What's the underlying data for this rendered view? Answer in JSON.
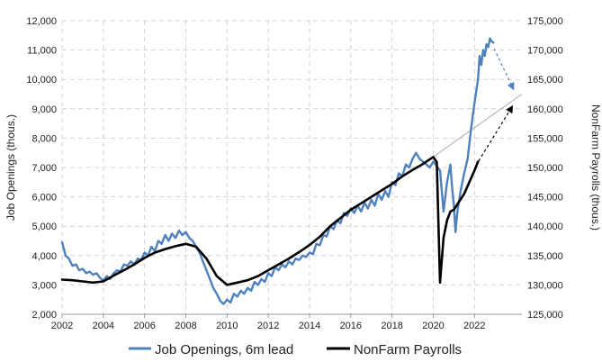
{
  "chart_data": {
    "type": "line",
    "xlim": [
      2002,
      2024.3
    ],
    "x_ticks": [
      "2002",
      "2004",
      "2006",
      "2008",
      "2010",
      "2012",
      "2014",
      "2016",
      "2018",
      "2020",
      "2022"
    ],
    "y_left": {
      "label": "Job Openings (thous.)",
      "lim": [
        2000,
        12000
      ],
      "ticks": [
        "2,000",
        "3,000",
        "4,000",
        "5,000",
        "6,000",
        "7,000",
        "8,000",
        "9,000",
        "10,000",
        "11,000",
        "12,000"
      ]
    },
    "y_right": {
      "label": "NonFarm Payrolls (thous.)",
      "lim": [
        125000,
        175000
      ],
      "ticks": [
        "125,000",
        "130,000",
        "135,000",
        "140,000",
        "145,000",
        "150,000",
        "155,000",
        "160,000",
        "165,000",
        "170,000",
        "175,000"
      ]
    },
    "grid": true,
    "legend_position": "bottom",
    "series": [
      {
        "name": "Job Openings, 6m lead",
        "axis": "left",
        "color": "#4f81bd",
        "points": [
          [
            2002.0,
            4450
          ],
          [
            2002.17,
            4000
          ],
          [
            2002.33,
            3900
          ],
          [
            2002.5,
            3650
          ],
          [
            2002.67,
            3700
          ],
          [
            2002.83,
            3500
          ],
          [
            2003.0,
            3550
          ],
          [
            2003.17,
            3400
          ],
          [
            2003.33,
            3450
          ],
          [
            2003.5,
            3350
          ],
          [
            2003.67,
            3400
          ],
          [
            2003.83,
            3250
          ],
          [
            2004.0,
            3150
          ],
          [
            2004.17,
            3300
          ],
          [
            2004.33,
            3200
          ],
          [
            2004.5,
            3400
          ],
          [
            2004.67,
            3500
          ],
          [
            2004.83,
            3450
          ],
          [
            2005.0,
            3700
          ],
          [
            2005.17,
            3650
          ],
          [
            2005.33,
            3800
          ],
          [
            2005.5,
            3700
          ],
          [
            2005.67,
            3900
          ],
          [
            2005.83,
            3850
          ],
          [
            2006.0,
            4100
          ],
          [
            2006.17,
            4000
          ],
          [
            2006.33,
            4300
          ],
          [
            2006.5,
            4150
          ],
          [
            2006.67,
            4500
          ],
          [
            2006.83,
            4400
          ],
          [
            2007.0,
            4700
          ],
          [
            2007.17,
            4500
          ],
          [
            2007.33,
            4750
          ],
          [
            2007.5,
            4600
          ],
          [
            2007.67,
            4850
          ],
          [
            2007.83,
            4700
          ],
          [
            2008.0,
            4800
          ],
          [
            2008.17,
            4600
          ],
          [
            2008.33,
            4500
          ],
          [
            2008.5,
            4300
          ],
          [
            2008.67,
            4100
          ],
          [
            2008.83,
            3800
          ],
          [
            2009.0,
            3500
          ],
          [
            2009.17,
            3200
          ],
          [
            2009.33,
            2900
          ],
          [
            2009.5,
            2700
          ],
          [
            2009.67,
            2450
          ],
          [
            2009.83,
            2350
          ],
          [
            2010.0,
            2500
          ],
          [
            2010.17,
            2400
          ],
          [
            2010.33,
            2700
          ],
          [
            2010.5,
            2600
          ],
          [
            2010.67,
            2800
          ],
          [
            2010.83,
            2700
          ],
          [
            2011.0,
            2900
          ],
          [
            2011.17,
            2800
          ],
          [
            2011.33,
            3100
          ],
          [
            2011.5,
            3000
          ],
          [
            2011.67,
            3200
          ],
          [
            2011.83,
            3100
          ],
          [
            2012.0,
            3400
          ],
          [
            2012.17,
            3300
          ],
          [
            2012.33,
            3600
          ],
          [
            2012.5,
            3500
          ],
          [
            2012.67,
            3700
          ],
          [
            2012.83,
            3600
          ],
          [
            2013.0,
            3800
          ],
          [
            2013.17,
            3700
          ],
          [
            2013.33,
            3900
          ],
          [
            2013.5,
            3850
          ],
          [
            2013.67,
            4000
          ],
          [
            2013.83,
            3950
          ],
          [
            2014.0,
            4100
          ],
          [
            2014.17,
            4050
          ],
          [
            2014.33,
            4400
          ],
          [
            2014.5,
            4350
          ],
          [
            2014.67,
            4700
          ],
          [
            2014.83,
            4650
          ],
          [
            2015.0,
            5000
          ],
          [
            2015.17,
            4900
          ],
          [
            2015.33,
            5200
          ],
          [
            2015.5,
            5100
          ],
          [
            2015.67,
            5450
          ],
          [
            2015.83,
            5350
          ],
          [
            2016.0,
            5600
          ],
          [
            2016.17,
            5450
          ],
          [
            2016.33,
            5700
          ],
          [
            2016.5,
            5500
          ],
          [
            2016.67,
            5800
          ],
          [
            2016.83,
            5600
          ],
          [
            2017.0,
            5900
          ],
          [
            2017.17,
            5700
          ],
          [
            2017.33,
            6100
          ],
          [
            2017.5,
            5900
          ],
          [
            2017.67,
            6200
          ],
          [
            2017.83,
            6000
          ],
          [
            2018.0,
            6500
          ],
          [
            2018.17,
            6400
          ],
          [
            2018.33,
            6800
          ],
          [
            2018.5,
            6700
          ],
          [
            2018.67,
            7100
          ],
          [
            2018.83,
            7000
          ],
          [
            2019.0,
            7300
          ],
          [
            2019.17,
            7500
          ],
          [
            2019.33,
            7300
          ],
          [
            2019.5,
            7200
          ],
          [
            2019.67,
            7100
          ],
          [
            2019.83,
            7000
          ],
          [
            2020.0,
            7200
          ],
          [
            2020.17,
            7050
          ],
          [
            2020.33,
            6900
          ],
          [
            2020.5,
            5500
          ],
          [
            2020.67,
            6500
          ],
          [
            2020.83,
            7100
          ],
          [
            2020.92,
            6300
          ],
          [
            2021.0,
            5700
          ],
          [
            2021.08,
            4800
          ],
          [
            2021.17,
            5500
          ],
          [
            2021.33,
            6200
          ],
          [
            2021.5,
            6800
          ],
          [
            2021.67,
            7300
          ],
          [
            2021.83,
            8300
          ],
          [
            2022.0,
            9200
          ],
          [
            2022.17,
            10000
          ],
          [
            2022.25,
            10800
          ],
          [
            2022.33,
            10500
          ],
          [
            2022.42,
            11000
          ],
          [
            2022.5,
            10800
          ],
          [
            2022.58,
            11200
          ],
          [
            2022.67,
            11100
          ],
          [
            2022.75,
            11400
          ],
          [
            2022.83,
            11300
          ],
          [
            2022.92,
            11250
          ]
        ]
      },
      {
        "name": "NonFarm Payrolls",
        "axis": "right",
        "color": "#000000",
        "points": [
          [
            2002.0,
            130900
          ],
          [
            2002.5,
            130800
          ],
          [
            2003.0,
            130600
          ],
          [
            2003.5,
            130400
          ],
          [
            2004.0,
            130600
          ],
          [
            2004.5,
            131600
          ],
          [
            2005.0,
            132500
          ],
          [
            2005.5,
            133500
          ],
          [
            2006.0,
            134600
          ],
          [
            2006.5,
            135500
          ],
          [
            2007.0,
            136100
          ],
          [
            2007.5,
            136600
          ],
          [
            2008.0,
            137000
          ],
          [
            2008.5,
            136500
          ],
          [
            2009.0,
            134500
          ],
          [
            2009.5,
            131500
          ],
          [
            2010.0,
            130000
          ],
          [
            2010.5,
            130400
          ],
          [
            2011.0,
            130800
          ],
          [
            2011.5,
            131500
          ],
          [
            2012.0,
            132500
          ],
          [
            2012.5,
            133500
          ],
          [
            2013.0,
            134500
          ],
          [
            2013.5,
            135600
          ],
          [
            2014.0,
            136800
          ],
          [
            2014.5,
            138200
          ],
          [
            2015.0,
            140000
          ],
          [
            2015.5,
            141400
          ],
          [
            2016.0,
            142800
          ],
          [
            2016.5,
            143900
          ],
          [
            2017.0,
            145000
          ],
          [
            2017.5,
            146100
          ],
          [
            2018.0,
            147200
          ],
          [
            2018.5,
            148500
          ],
          [
            2019.0,
            149600
          ],
          [
            2019.5,
            150600
          ],
          [
            2020.0,
            151800
          ],
          [
            2020.17,
            150900
          ],
          [
            2020.33,
            130400
          ],
          [
            2020.5,
            138000
          ],
          [
            2020.67,
            141000
          ],
          [
            2020.83,
            142500
          ],
          [
            2021.0,
            142800
          ],
          [
            2021.5,
            145500
          ],
          [
            2022.0,
            149500
          ],
          [
            2022.17,
            151000
          ]
        ]
      }
    ],
    "annotations": [
      {
        "kind": "trend-line",
        "color": "#aaaaaa",
        "axis": "right",
        "from": [
          2020.0,
          151800
        ],
        "to": [
          2024.3,
          162500
        ]
      },
      {
        "kind": "dashed-arrow",
        "color": "#4f81bd",
        "axis": "left",
        "from": [
          2022.95,
          11050
        ],
        "to": [
          2023.9,
          9650
        ]
      },
      {
        "kind": "dashed-arrow",
        "color": "#000000",
        "axis": "right",
        "from": [
          2022.2,
          151100
        ],
        "to": [
          2023.85,
          160500
        ]
      }
    ]
  }
}
